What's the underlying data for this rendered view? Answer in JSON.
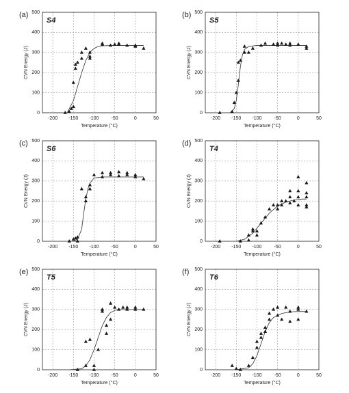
{
  "chart_data": [
    {
      "type": "scatter",
      "panel": "(a)",
      "title": "S4",
      "xlabel": "Temperature (°C)",
      "ylabel": "CVN Energy (J)",
      "xlim": [
        -225,
        50
      ],
      "ylim": [
        0,
        500
      ],
      "xticks": [
        -200,
        -150,
        -100,
        -50,
        0,
        50
      ],
      "yticks": [
        0,
        100,
        200,
        300,
        400,
        500
      ],
      "grid": true,
      "color": "#1a1a1a",
      "points": {
        "x": [
          -170,
          -160,
          -155,
          -150,
          -150,
          -145,
          -145,
          -140,
          -130,
          -130,
          -120,
          -110,
          -110,
          -110,
          -80,
          -80,
          -60,
          -50,
          -40,
          -40,
          -20,
          0,
          0,
          20
        ],
        "y": [
          0,
          5,
          20,
          30,
          150,
          240,
          220,
          250,
          300,
          270,
          320,
          300,
          280,
          270,
          340,
          345,
          335,
          340,
          345,
          340,
          335,
          335,
          330,
          320
        ]
      },
      "fit": {
        "x": [
          -165,
          -150,
          -140,
          -130,
          -120,
          -110,
          -100,
          -90,
          -80,
          -60,
          -40,
          -20,
          0,
          20
        ],
        "y": [
          0,
          60,
          130,
          200,
          260,
          300,
          320,
          330,
          333,
          335,
          335,
          335,
          335,
          335
        ]
      }
    },
    {
      "type": "scatter",
      "panel": "(b)",
      "title": "S5",
      "xlabel": "Temperature (°C)",
      "ylabel": "CVN Energy (J)",
      "xlim": [
        -225,
        50
      ],
      "ylim": [
        0,
        500
      ],
      "xticks": [
        -200,
        -150,
        -100,
        -50,
        0,
        50
      ],
      "yticks": [
        0,
        100,
        200,
        300,
        400,
        500
      ],
      "grid": true,
      "color": "#1a1a1a",
      "points": {
        "x": [
          -190,
          -160,
          -155,
          -150,
          -145,
          -145,
          -140,
          -130,
          -130,
          -120,
          -110,
          -90,
          -80,
          -60,
          -50,
          -50,
          -40,
          -30,
          -20,
          -20,
          0,
          20,
          20
        ],
        "y": [
          0,
          5,
          50,
          100,
          160,
          250,
          260,
          330,
          300,
          300,
          320,
          335,
          345,
          340,
          345,
          335,
          345,
          340,
          345,
          335,
          340,
          330,
          320
        ]
      },
      "fit": {
        "x": [
          -165,
          -155,
          -150,
          -145,
          -140,
          -135,
          -130,
          -120,
          -100,
          -80,
          -40,
          0,
          20
        ],
        "y": [
          0,
          20,
          60,
          140,
          230,
          290,
          315,
          330,
          335,
          335,
          335,
          335,
          335
        ]
      }
    },
    {
      "type": "scatter",
      "panel": "(c)",
      "title": "S6",
      "xlabel": "Temperature (°C)",
      "ylabel": "CVN Energy (J)",
      "xlim": [
        -225,
        50
      ],
      "ylim": [
        0,
        500
      ],
      "xticks": [
        -200,
        -150,
        -100,
        -50,
        0,
        50
      ],
      "yticks": [
        0,
        100,
        200,
        300,
        400,
        500
      ],
      "grid": true,
      "color": "#1a1a1a",
      "points": {
        "x": [
          -160,
          -150,
          -145,
          -140,
          -140,
          -130,
          -120,
          -120,
          -110,
          -110,
          -100,
          -80,
          -80,
          -60,
          -60,
          -40,
          -40,
          -20,
          -20,
          0,
          0,
          20
        ],
        "y": [
          0,
          10,
          15,
          20,
          0,
          260,
          220,
          200,
          280,
          260,
          330,
          320,
          340,
          340,
          330,
          345,
          325,
          330,
          340,
          330,
          320,
          310
        ]
      },
      "fit": {
        "x": [
          -150,
          -140,
          -130,
          -125,
          -120,
          -115,
          -110,
          -100,
          -80,
          -60,
          -40,
          -20,
          0,
          20
        ],
        "y": [
          0,
          10,
          60,
          140,
          210,
          260,
          290,
          315,
          320,
          320,
          320,
          320,
          320,
          320
        ]
      }
    },
    {
      "type": "scatter",
      "panel": "(d)",
      "title": "T4",
      "xlabel": "Temperature (°C)",
      "ylabel": "CVN Energy (J)",
      "xlim": [
        -225,
        50
      ],
      "ylim": [
        0,
        500
      ],
      "xticks": [
        -200,
        -150,
        -100,
        -50,
        0,
        50
      ],
      "yticks": [
        0,
        100,
        200,
        300,
        400,
        500
      ],
      "grid": true,
      "color": "#1a1a1a",
      "points": {
        "x": [
          -190,
          -140,
          -120,
          -120,
          -110,
          -110,
          -100,
          -100,
          -90,
          -80,
          -70,
          -60,
          -50,
          -50,
          -40,
          -40,
          -30,
          -20,
          -20,
          -20,
          -10,
          0,
          0,
          0,
          0,
          20,
          20,
          20,
          20,
          20
        ],
        "y": [
          0,
          0,
          5,
          30,
          60,
          50,
          30,
          50,
          90,
          120,
          160,
          180,
          180,
          160,
          200,
          180,
          200,
          220,
          250,
          190,
          200,
          320,
          250,
          220,
          180,
          290,
          240,
          220,
          180,
          170
        ]
      },
      "fit": {
        "x": [
          -150,
          -130,
          -110,
          -90,
          -70,
          -50,
          -30,
          -10,
          10,
          20
        ],
        "y": [
          0,
          10,
          40,
          90,
          140,
          175,
          195,
          205,
          210,
          210
        ]
      }
    },
    {
      "type": "scatter",
      "panel": "(e)",
      "title": "T5",
      "xlabel": "Temperature (°C)",
      "ylabel": "CVN Energy (J)",
      "xlim": [
        -225,
        50
      ],
      "ylim": [
        0,
        500
      ],
      "xticks": [
        -200,
        -150,
        -100,
        -50,
        0,
        50
      ],
      "yticks": [
        0,
        100,
        200,
        300,
        400,
        500
      ],
      "grid": true,
      "color": "#1a1a1a",
      "points": {
        "x": [
          -140,
          -120,
          -120,
          -110,
          -100,
          -100,
          -90,
          -80,
          -80,
          -70,
          -70,
          -60,
          -60,
          -50,
          -40,
          -30,
          -20,
          -20,
          0,
          0,
          20
        ],
        "y": [
          0,
          20,
          140,
          150,
          0,
          20,
          100,
          290,
          300,
          180,
          220,
          250,
          330,
          310,
          300,
          310,
          310,
          300,
          310,
          300,
          300
        ]
      },
      "fit": {
        "x": [
          -160,
          -130,
          -120,
          -110,
          -100,
          -90,
          -80,
          -70,
          -60,
          -50,
          -40,
          -20,
          0,
          20
        ],
        "y": [
          0,
          5,
          20,
          50,
          100,
          160,
          220,
          260,
          285,
          295,
          300,
          300,
          300,
          300
        ]
      }
    },
    {
      "type": "scatter",
      "panel": "(f)",
      "title": "T6",
      "xlabel": "Temperature (°C)",
      "ylabel": "CVN Energy (J)",
      "xlim": [
        -225,
        50
      ],
      "ylim": [
        0,
        500
      ],
      "xticks": [
        -200,
        -150,
        -100,
        -50,
        0,
        50
      ],
      "yticks": [
        0,
        100,
        200,
        300,
        400,
        500
      ],
      "grid": true,
      "color": "#1a1a1a",
      "points": {
        "x": [
          -160,
          -150,
          -140,
          -120,
          -110,
          -100,
          -100,
          -90,
          -90,
          -80,
          -80,
          -70,
          -70,
          -60,
          -50,
          -50,
          -40,
          -30,
          -20,
          -20,
          0,
          0,
          0,
          20
        ],
        "y": [
          20,
          5,
          0,
          20,
          60,
          110,
          140,
          160,
          180,
          210,
          190,
          280,
          250,
          300,
          310,
          270,
          250,
          310,
          290,
          240,
          310,
          300,
          250,
          290
        ]
      },
      "fit": {
        "x": [
          -150,
          -120,
          -110,
          -100,
          -90,
          -80,
          -70,
          -60,
          -40,
          -20,
          0,
          20
        ],
        "y": [
          0,
          10,
          30,
          70,
          130,
          190,
          235,
          260,
          280,
          288,
          290,
          290
        ]
      }
    }
  ]
}
